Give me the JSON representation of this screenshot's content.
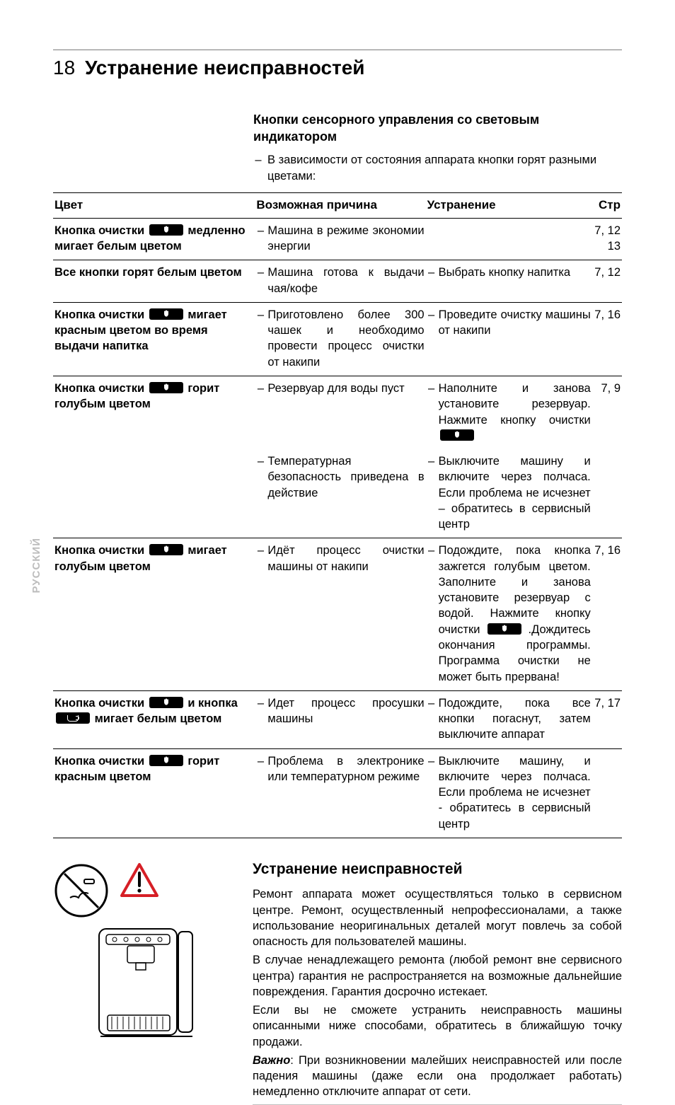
{
  "page_number": "18",
  "title": "Устранение неисправностей",
  "subheading": "Кнопки сенсорного управления со световым индикатором",
  "intro": "В зависимости от состояния аппарата кнопки горят разными цветами:",
  "table": {
    "headers": {
      "c1": "Цвет",
      "c2": "Возможная причина",
      "c3": "Устранение",
      "c4": "Стр"
    },
    "rows": [
      {
        "group_end": true,
        "c1_pre": "Кнопка очистки ",
        "c1_icon": "drop",
        "c1_post": " медленно мигает белым цветом",
        "c2": "Машина в режиме экономии энергии",
        "c3": "",
        "c4": "7, 12 13"
      },
      {
        "group_end": true,
        "c1_pre": "Все кнопки горят белым цветом",
        "c1_icon": "",
        "c2": "Машина готова к выдачи чая/кофе",
        "c3": "Выбрать кнопку напитка",
        "c4": "7, 12"
      },
      {
        "group_end": true,
        "c1_pre": "Кнопка очистки ",
        "c1_icon": "drop",
        "c1_post": " мигает красным цветом во время выдачи напитка",
        "c2": "Приготовлено более 300 чашек и необходимо провести процесс очистки от накипи",
        "c3": "Проведите очистку машины от накипи",
        "c4": "7, 16"
      },
      {
        "no_bottom": true,
        "c1_pre": "Кнопка очистки ",
        "c1_icon": "drop",
        "c1_post": " горит голубым цветом",
        "c2": "Резервуар для воды пуст",
        "c3_pre": "Наполните и занова установите резервуар. Нажмите кнопку очистки ",
        "c3_icon": "drop",
        "c3_post": "",
        "c4": "7, 9"
      },
      {
        "group_end": true,
        "c1_pre": "",
        "c1_icon": "",
        "c2": "Температурная безопасность приведена в действие",
        "c3": "Выключите машину и включите через полчаса. Если проблема не исчезнет – обратитесь в сервисный центр",
        "c4": ""
      },
      {
        "group_end": true,
        "c1_pre": "Кнопка очистки ",
        "c1_icon": "drop",
        "c1_post": " мигает голубым цветом",
        "c2": "Идёт процесс очистки машины от накипи",
        "c3_pre": "Подождите, пока кнопка зажгется голубым цветом. Заполните и занова установите резервуар с водой. Нажмите кнопку очистки ",
        "c3_icon": "drop",
        "c3_post": " .Дождитесь окончания программы. Программа очистки не может быть прервана!",
        "c4": "7, 16"
      },
      {
        "group_end": true,
        "c1_pre": "Кнопка очистки ",
        "c1_icon": "drop",
        "c1_mid": " и кнопка ",
        "c1_icon2": "cup",
        "c1_post": " мигает белым цветом",
        "c2": "Идет процесс просушки машины",
        "c3": "Подождите, пока все кнопки погаснут, затем выключите аппарат",
        "c4": "7, 17"
      },
      {
        "group_end": true,
        "c1_pre": "Кнопка очистки ",
        "c1_icon": "drop",
        "c1_post": " горит красным цветом",
        "c2": "Проблема в электронике или температурном режиме",
        "c3": "Выключите машину, и включите через полчаса. Если проблема не исчезнет - обратитесь в сервисный центр",
        "c4": ""
      }
    ]
  },
  "side_tab": "РУССКИЙ",
  "bottom": {
    "heading": "Устранение неисправностей",
    "p1": "Ремонт аппарата может осуществляться только в сервисном центре. Ремонт, осуществленный непрофессионалами, а также использование неоригинальных деталей могут повлечь за собой опасность для пользователей машины.",
    "p2": "В случае ненадлежащего ремонта (любой ремонт вне сервисного центра) гарантия не распространяется на возможные дальнейшие повреждения. Гарантия досрочно истекает.",
    "p3": "Если вы не сможете устранить неисправность машины описанными ниже способами, обратитесь в ближайшую точку продажи.",
    "important_label": "Важно",
    "p4": ": При возникновении малейших неисправностей или после падения машины (даже если она продолжает работать) немедленно отключите аппарат от сети."
  }
}
